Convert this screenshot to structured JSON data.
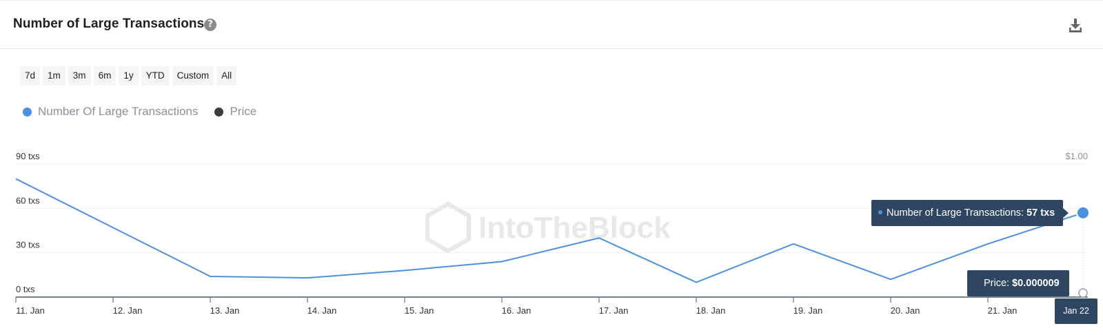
{
  "header": {
    "title": "Number of Large Transactions",
    "help_icon": "question-circle-icon",
    "download_icon": "download-icon"
  },
  "ranges": [
    "7d",
    "1m",
    "3m",
    "6m",
    "1y",
    "YTD",
    "Custom",
    "All"
  ],
  "watermark": "IntoTheBlock",
  "tooltips": {
    "main_label": "Number of Large Transactions: ",
    "main_value": "57 txs",
    "price_label": "Price: ",
    "price_value": "$0.000009",
    "date": "Jan 22"
  },
  "colors": {
    "series_line": "#4a90e2",
    "price_dot": "#3d3d3d",
    "tooltip_bg": "#2f4663",
    "axis": "#4a5a6e",
    "grid": "#efefef"
  },
  "chart_data": {
    "type": "line",
    "title": "Number of Large Transactions",
    "x": [
      "11. Jan",
      "12. Jan",
      "13. Jan",
      "14. Jan",
      "15. Jan",
      "16. Jan",
      "17. Jan",
      "18. Jan",
      "19. Jan",
      "20. Jan",
      "21. Jan",
      "Jan 22"
    ],
    "series": [
      {
        "name": "Number Of Large Transactions",
        "axis": "left",
        "values": [
          80,
          47,
          14,
          13,
          18,
          24,
          40,
          10,
          36,
          12,
          36,
          57
        ]
      },
      {
        "name": "Price",
        "axis": "right",
        "values": [
          null,
          null,
          null,
          null,
          null,
          null,
          null,
          null,
          null,
          null,
          null,
          9e-06
        ]
      }
    ],
    "y_left": {
      "ticks": [
        "0 txs",
        "30 txs",
        "60 txs",
        "90 txs"
      ],
      "tick_values": [
        0,
        30,
        60,
        90
      ],
      "range": [
        0,
        90
      ]
    },
    "y_right": {
      "ticks": [
        "$1.00"
      ],
      "tick_values": [
        1.0
      ],
      "range": [
        0,
        1.0
      ]
    },
    "x_ticks": [
      "11. Jan",
      "12. Jan",
      "13. Jan",
      "14. Jan",
      "15. Jan",
      "16. Jan",
      "17. Jan",
      "18. Jan",
      "19. Jan",
      "20. Jan",
      "21. Jan"
    ],
    "legend_position": "top-left",
    "grid": true
  }
}
